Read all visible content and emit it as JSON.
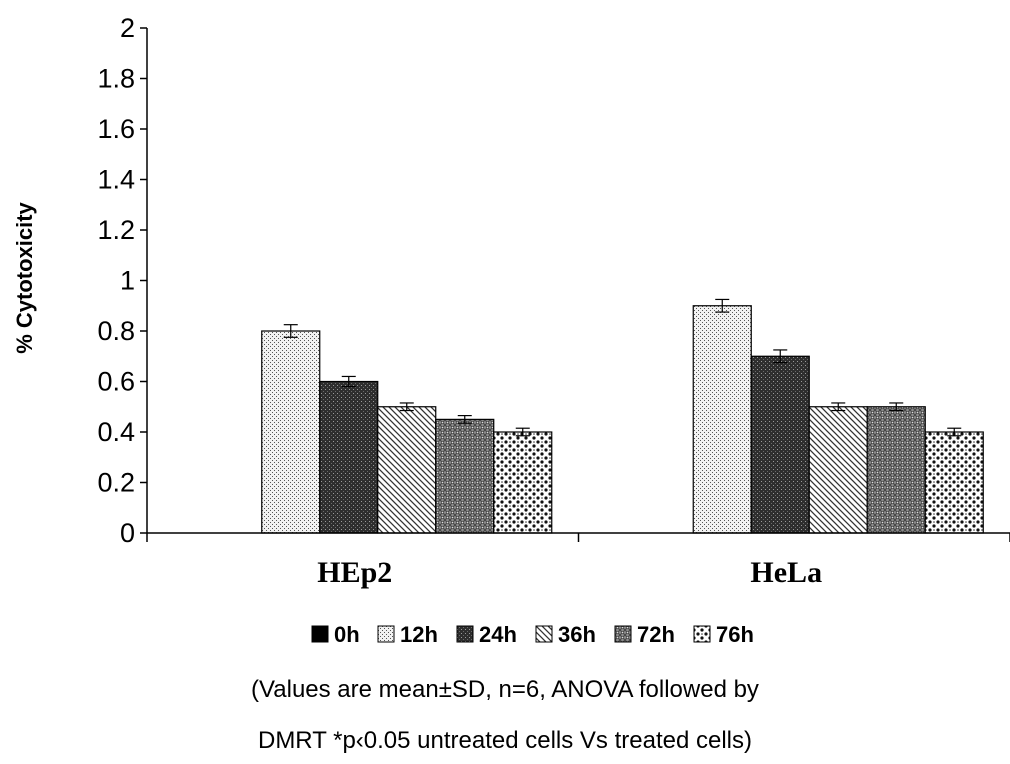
{
  "chart_data": {
    "type": "bar",
    "ylabel": "% Cytotoxicity",
    "xlabel": "",
    "ylim": [
      0,
      2
    ],
    "yticks": [
      "0",
      "0.2",
      "0.4",
      "0.6",
      "0.8",
      "1",
      "1.2",
      "1.4",
      "1.6",
      "1.8",
      "2"
    ],
    "categories": [
      "HEp2",
      "HeLa"
    ],
    "series": [
      {
        "name": "0h",
        "pattern": "solid",
        "values": [
          0,
          0
        ],
        "errors": [
          0,
          0
        ]
      },
      {
        "name": "12h",
        "pattern": "fine-dots",
        "values": [
          0.8,
          0.9
        ],
        "errors": [
          0.025,
          0.025
        ]
      },
      {
        "name": "24h",
        "pattern": "dark-dots",
        "values": [
          0.6,
          0.7
        ],
        "errors": [
          0.02,
          0.025
        ]
      },
      {
        "name": "36h",
        "pattern": "diagonal",
        "values": [
          0.5,
          0.5
        ],
        "errors": [
          0.015,
          0.015
        ]
      },
      {
        "name": "72h",
        "pattern": "crosshatch",
        "values": [
          0.45,
          0.5
        ],
        "errors": [
          0.015,
          0.015
        ]
      },
      {
        "name": "76h",
        "pattern": "spots",
        "values": [
          0.4,
          0.4
        ],
        "errors": [
          0.015,
          0.015
        ]
      }
    ],
    "legend_position": "bottom",
    "grid": false
  },
  "notes": {
    "line1": "(Values are mean±SD, n=6, ANOVA followed by",
    "line2": "DMRT *p‹0.05 untreated cells Vs treated cells)"
  }
}
